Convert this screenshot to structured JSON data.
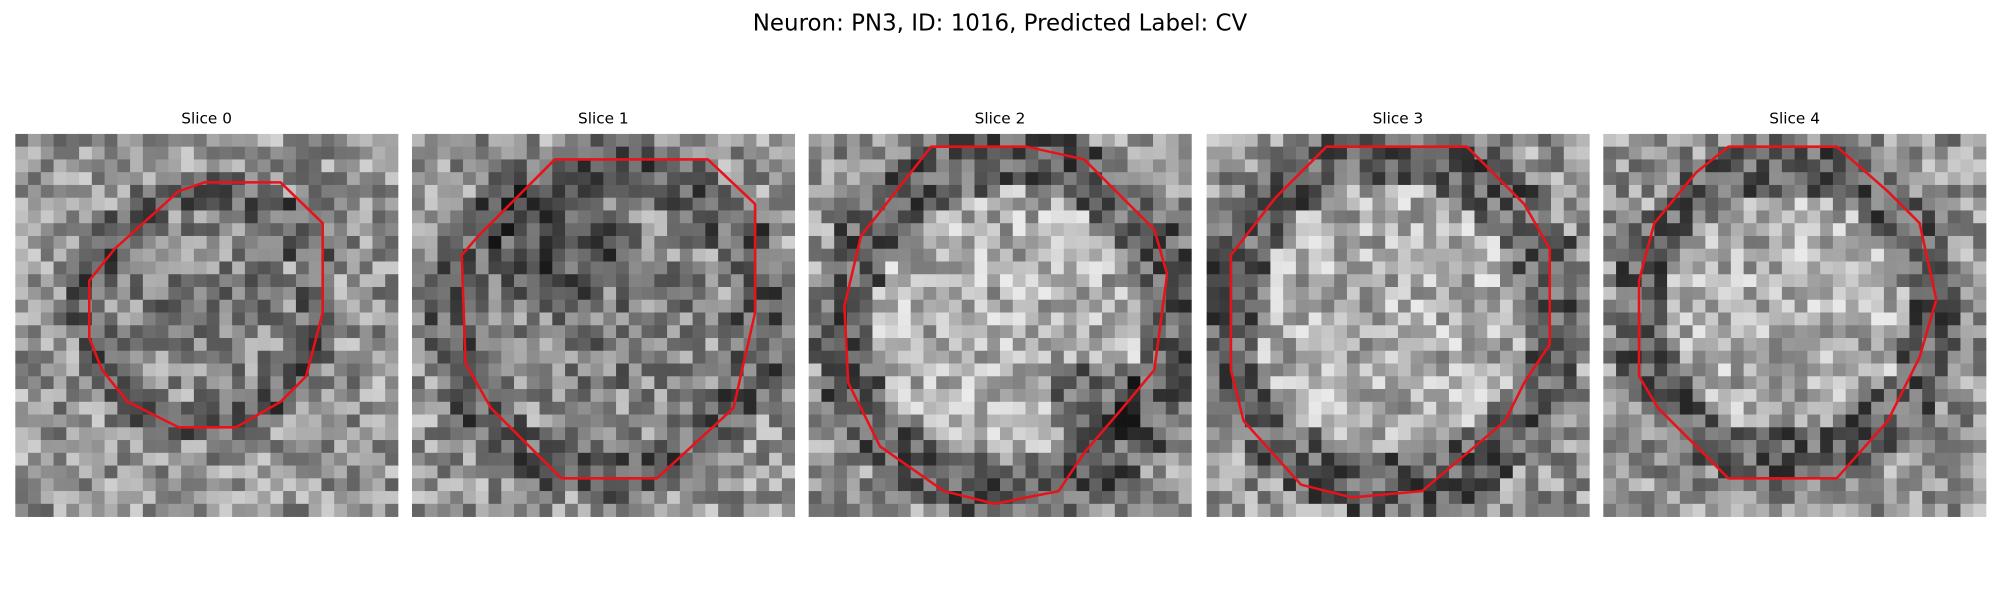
{
  "title": "Neuron: PN3, ID: 1016, Predicted Label: CV",
  "panels": [
    {
      "title": "Slice 0"
    },
    {
      "title": "Slice 1"
    },
    {
      "title": "Slice 2"
    },
    {
      "title": "Slice 3"
    },
    {
      "title": "Slice 4"
    }
  ]
}
